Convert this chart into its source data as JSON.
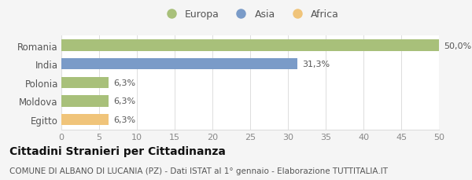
{
  "categories": [
    "Egitto",
    "Moldova",
    "Polonia",
    "India",
    "Romania"
  ],
  "values": [
    6.3,
    6.3,
    6.3,
    31.3,
    50.0
  ],
  "bar_colors": [
    "#f0c47a",
    "#a8c07a",
    "#a8c07a",
    "#7a9bc8",
    "#a8c07a"
  ],
  "labels": [
    "6,3%",
    "6,3%",
    "6,3%",
    "31,3%",
    "50,0%"
  ],
  "legend_items": [
    {
      "label": "Europa",
      "color": "#a8c07a"
    },
    {
      "label": "Asia",
      "color": "#7a9bc8"
    },
    {
      "label": "Africa",
      "color": "#f0c47a"
    }
  ],
  "xlim": [
    0,
    50
  ],
  "xticks": [
    0,
    5,
    10,
    15,
    20,
    25,
    30,
    35,
    40,
    45,
    50
  ],
  "title_main": "Cittadini Stranieri per Cittadinanza",
  "title_sub": "COMUNE DI ALBANO DI LUCANIA (PZ) - Dati ISTAT al 1° gennaio - Elaborazione TUTTITALIA.IT",
  "fig_background": "#f5f5f5",
  "plot_background": "#ffffff",
  "bar_height": 0.6,
  "label_fontsize": 8,
  "tick_fontsize": 8,
  "ytick_fontsize": 8.5,
  "title_fontsize": 10,
  "subtitle_fontsize": 7.5,
  "grid_color": "#dddddd",
  "text_color": "#555555",
  "title_color": "#111111"
}
